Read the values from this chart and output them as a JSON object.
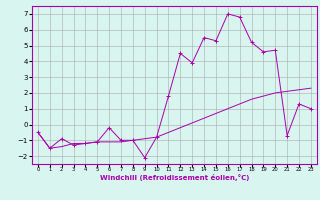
{
  "xlabel": "Windchill (Refroidissement éolien,°C)",
  "x_values": [
    0,
    1,
    2,
    3,
    4,
    5,
    6,
    7,
    8,
    9,
    10,
    11,
    12,
    13,
    14,
    15,
    16,
    17,
    18,
    19,
    20,
    21,
    22,
    23
  ],
  "line1_y": [
    -0.5,
    -1.5,
    -0.9,
    -1.3,
    -1.2,
    -1.1,
    -0.2,
    -1.0,
    -1.0,
    -2.1,
    -0.8,
    1.8,
    4.5,
    3.9,
    5.5,
    5.3,
    7.0,
    6.8,
    5.2,
    4.6,
    4.7,
    -0.7,
    1.3,
    1.0
  ],
  "line2_y": [
    -0.5,
    -1.5,
    -1.4,
    -1.2,
    -1.2,
    -1.1,
    -1.1,
    -1.1,
    -1.0,
    -0.9,
    -0.8,
    -0.5,
    -0.2,
    0.1,
    0.4,
    0.7,
    1.0,
    1.3,
    1.6,
    1.8,
    2.0,
    2.1,
    2.2,
    2.3
  ],
  "line_color": "#aa00aa",
  "bg_color": "#d8f5f0",
  "grid_color": "#aaaaaa",
  "ylim": [
    -2.5,
    7.5
  ],
  "yticks": [
    -2,
    -1,
    0,
    1,
    2,
    3,
    4,
    5,
    6,
    7
  ],
  "xtick_labels": [
    "0",
    "1",
    "2",
    "3",
    "4",
    "5",
    "6",
    "7",
    "8",
    "9",
    "10",
    "11",
    "12",
    "13",
    "14",
    "15",
    "16",
    "17",
    "18",
    "19",
    "20",
    "21",
    "22",
    "23"
  ],
  "marker": "+"
}
